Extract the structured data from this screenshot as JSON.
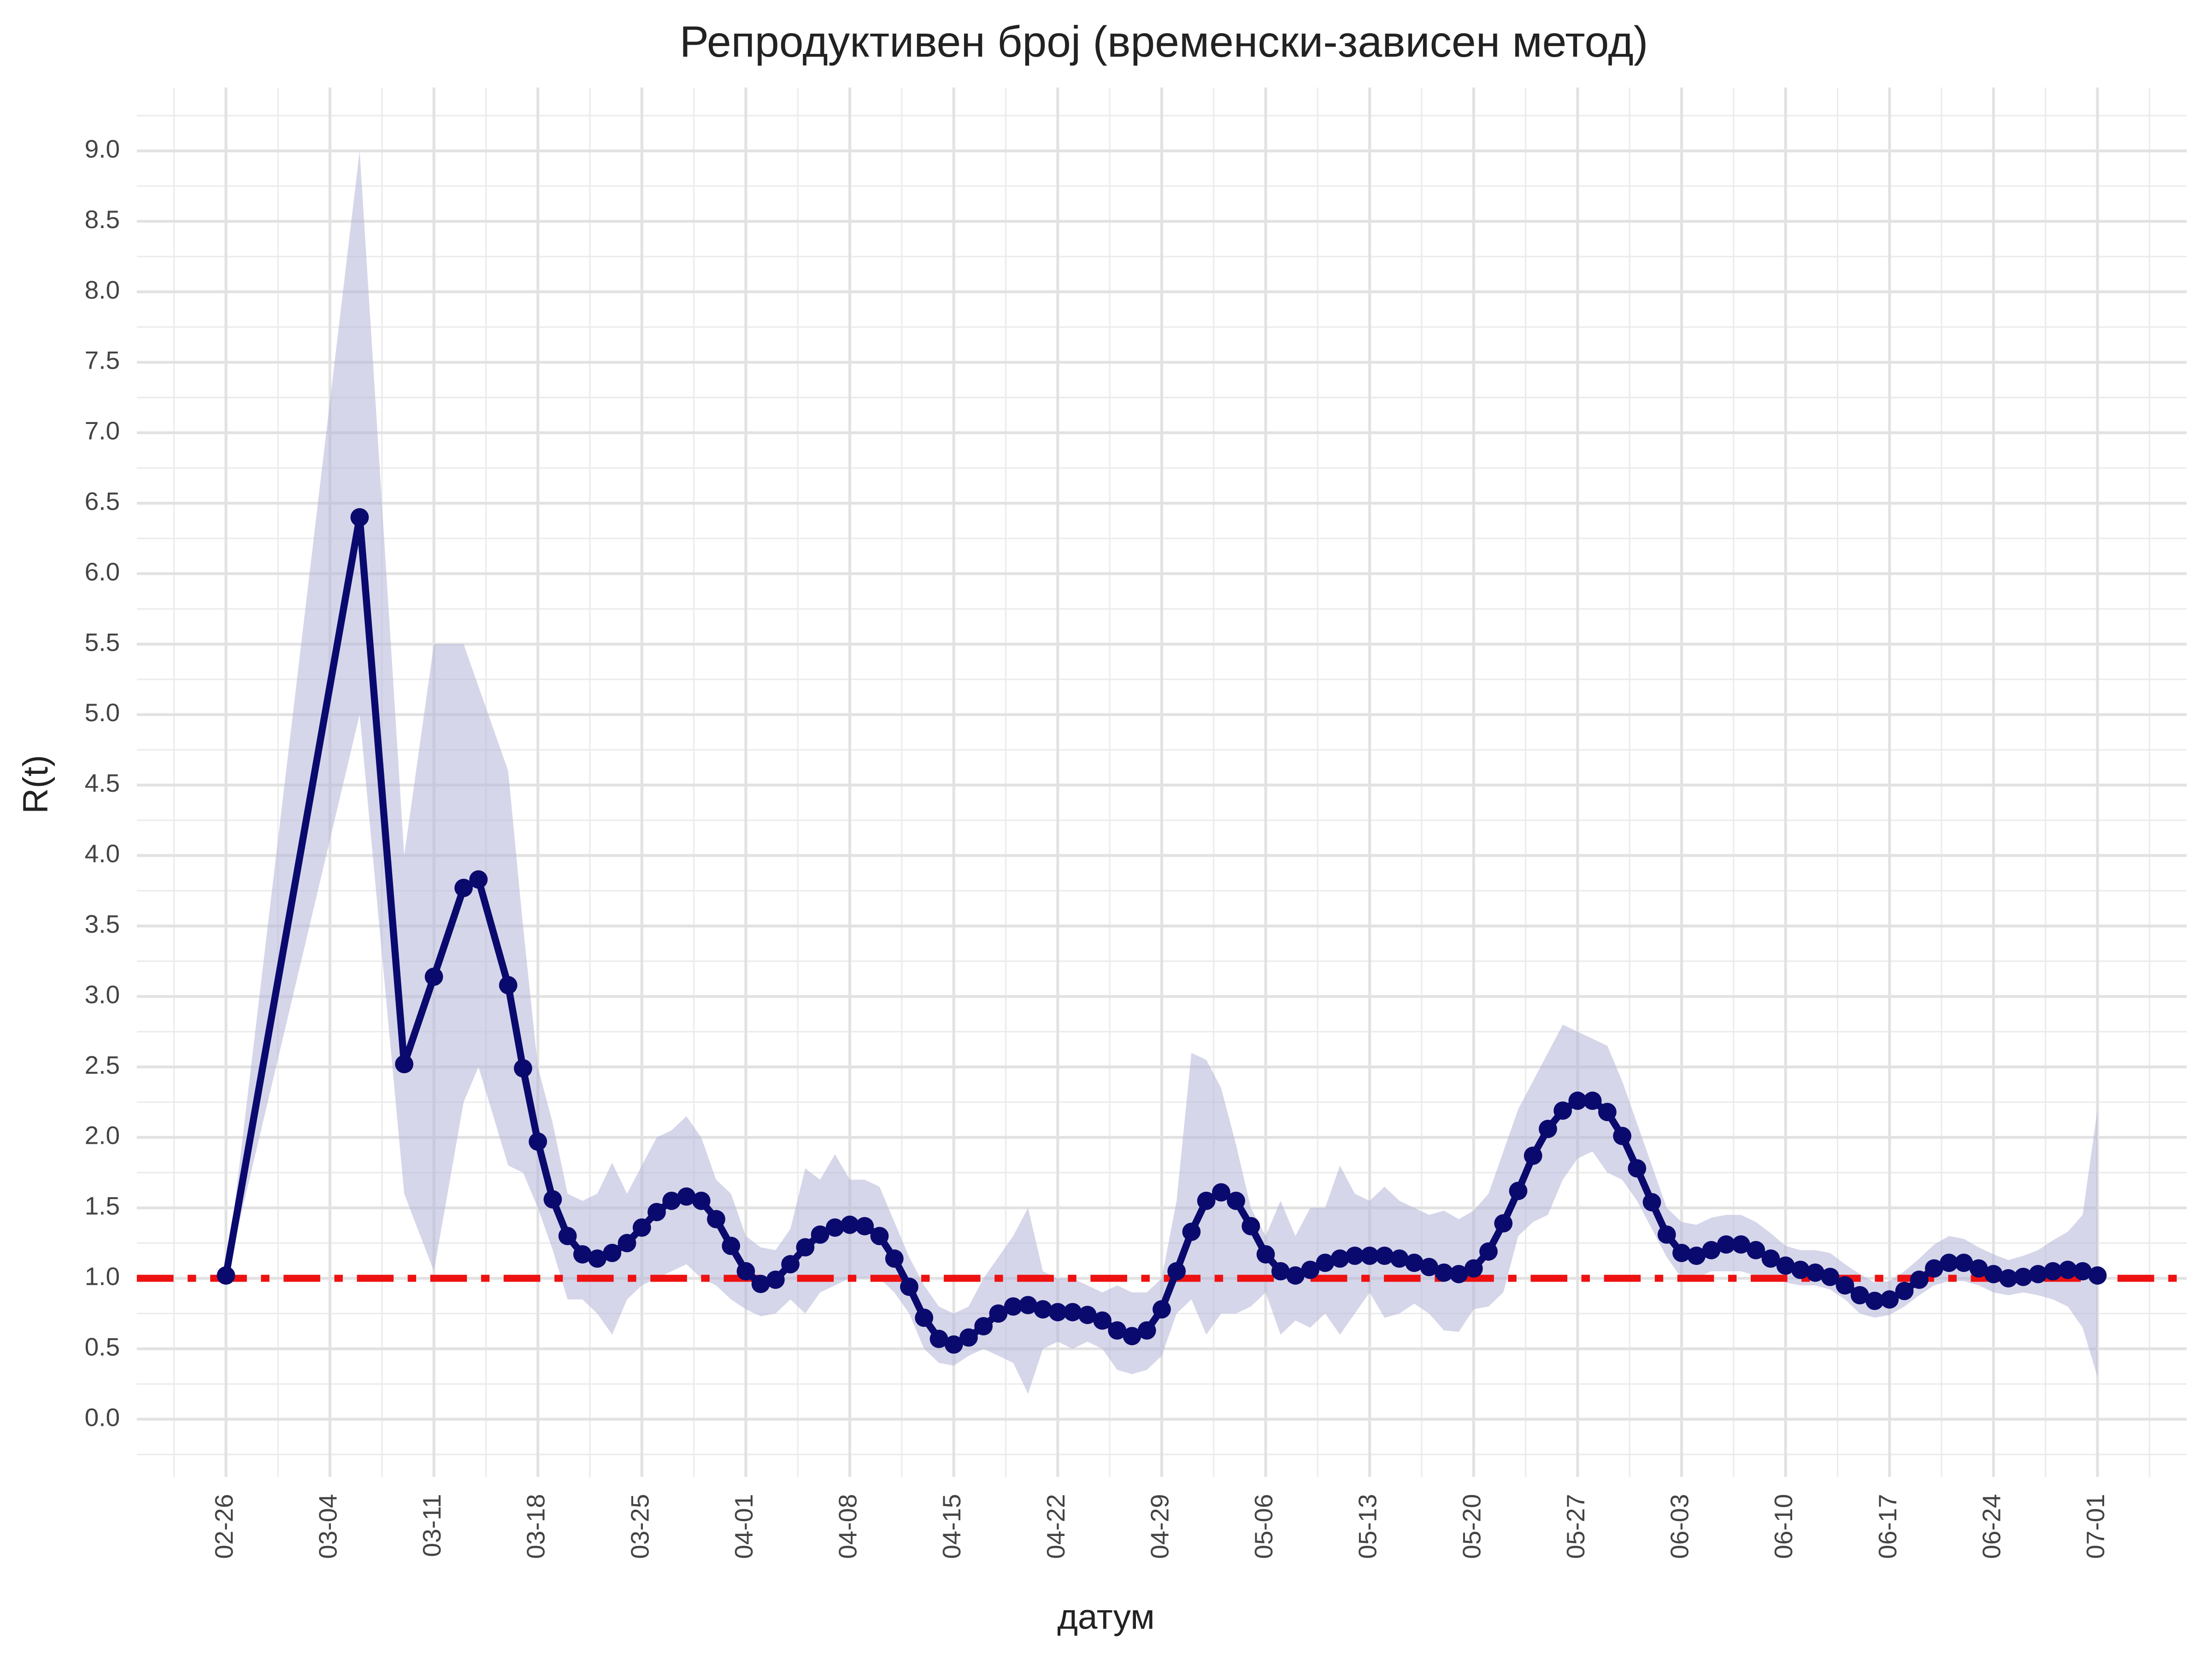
{
  "chart_data": {
    "type": "line",
    "title": "Репродуктивен број (временски-зависен метод)",
    "x_label": "датум",
    "y_label": "R(t)",
    "x": [
      "02-26",
      "03-06",
      "03-09",
      "03-11",
      "03-13",
      "03-14",
      "03-16",
      "03-17",
      "03-18",
      "03-19",
      "03-20",
      "03-21",
      "03-22",
      "03-23",
      "03-24",
      "03-25",
      "03-26",
      "03-27",
      "03-28",
      "03-29",
      "03-30",
      "03-31",
      "04-01",
      "04-02",
      "04-03",
      "04-04",
      "04-05",
      "04-06",
      "04-07",
      "04-08",
      "04-09",
      "04-10",
      "04-11",
      "04-12",
      "04-13",
      "04-14",
      "04-15",
      "04-16",
      "04-17",
      "04-18",
      "04-19",
      "04-20",
      "04-21",
      "04-22",
      "04-23",
      "04-24",
      "04-25",
      "04-26",
      "04-27",
      "04-28",
      "04-29",
      "04-30",
      "05-01",
      "05-02",
      "05-03",
      "05-04",
      "05-05",
      "05-06",
      "05-07",
      "05-08",
      "05-09",
      "05-10",
      "05-11",
      "05-12",
      "05-13",
      "05-14",
      "05-15",
      "05-16",
      "05-17",
      "05-18",
      "05-19",
      "05-20",
      "05-21",
      "05-22",
      "05-23",
      "05-24",
      "05-25",
      "05-26",
      "05-27",
      "05-28",
      "05-29",
      "05-30",
      "05-31",
      "06-01",
      "06-02",
      "06-03",
      "06-04",
      "06-05",
      "06-06",
      "06-07",
      "06-08",
      "06-09",
      "06-10",
      "06-11",
      "06-12",
      "06-13",
      "06-14",
      "06-15",
      "06-16",
      "06-17",
      "06-18",
      "06-19",
      "06-20",
      "06-21",
      "06-22",
      "06-23",
      "06-24",
      "06-25",
      "06-26",
      "06-27",
      "06-28",
      "06-29",
      "06-30",
      "07-01"
    ],
    "values": [
      1.02,
      6.4,
      2.52,
      3.14,
      3.77,
      3.83,
      3.08,
      2.49,
      1.97,
      1.56,
      1.3,
      1.17,
      1.14,
      1.18,
      1.25,
      1.36,
      1.47,
      1.55,
      1.58,
      1.55,
      1.42,
      1.23,
      1.05,
      0.96,
      0.99,
      1.1,
      1.22,
      1.31,
      1.36,
      1.38,
      1.37,
      1.3,
      1.14,
      0.94,
      0.72,
      0.57,
      0.53,
      0.58,
      0.66,
      0.75,
      0.8,
      0.81,
      0.78,
      0.76,
      0.76,
      0.74,
      0.7,
      0.63,
      0.59,
      0.63,
      0.78,
      1.05,
      1.33,
      1.55,
      1.61,
      1.55,
      1.37,
      1.17,
      1.05,
      1.02,
      1.06,
      1.11,
      1.14,
      1.16,
      1.16,
      1.16,
      1.14,
      1.11,
      1.08,
      1.04,
      1.03,
      1.07,
      1.19,
      1.39,
      1.62,
      1.87,
      2.06,
      2.19,
      2.26,
      2.26,
      2.18,
      2.01,
      1.78,
      1.54,
      1.31,
      1.18,
      1.16,
      1.2,
      1.24,
      1.24,
      1.2,
      1.14,
      1.09,
      1.06,
      1.04,
      1.01,
      0.95,
      0.88,
      0.84,
      0.85,
      0.91,
      0.99,
      1.07,
      1.11,
      1.11,
      1.07,
      1.03,
      1.0,
      1.01,
      1.03,
      1.05,
      1.06,
      1.05,
      1.02
    ],
    "lower": [
      1.0,
      5.0,
      1.6,
      1.05,
      2.25,
      2.5,
      1.8,
      1.75,
      1.5,
      1.2,
      0.85,
      0.85,
      0.75,
      0.6,
      0.85,
      0.95,
      1.0,
      1.05,
      1.1,
      1.0,
      0.95,
      0.85,
      0.78,
      0.73,
      0.75,
      0.85,
      0.75,
      0.9,
      0.95,
      1.0,
      1.0,
      1.0,
      0.9,
      0.75,
      0.5,
      0.4,
      0.38,
      0.45,
      0.5,
      0.45,
      0.4,
      0.18,
      0.5,
      0.55,
      0.5,
      0.55,
      0.5,
      0.35,
      0.32,
      0.35,
      0.45,
      0.75,
      0.85,
      0.6,
      0.75,
      0.75,
      0.8,
      0.9,
      0.6,
      0.7,
      0.65,
      0.75,
      0.6,
      0.75,
      0.9,
      0.72,
      0.75,
      0.82,
      0.75,
      0.63,
      0.62,
      0.78,
      0.8,
      0.9,
      1.3,
      1.4,
      1.45,
      1.7,
      1.85,
      1.9,
      1.75,
      1.7,
      1.55,
      1.35,
      1.15,
      1.0,
      1.0,
      1.05,
      1.05,
      1.05,
      1.02,
      1.0,
      0.97,
      0.95,
      0.95,
      0.92,
      0.85,
      0.75,
      0.72,
      0.74,
      0.8,
      0.88,
      0.95,
      0.98,
      0.98,
      0.95,
      0.9,
      0.88,
      0.9,
      0.88,
      0.85,
      0.8,
      0.65,
      0.3
    ],
    "upper": [
      1.0,
      9.0,
      4.0,
      5.5,
      5.5,
      5.2,
      4.6,
      3.5,
      2.5,
      2.1,
      1.6,
      1.55,
      1.6,
      1.82,
      1.6,
      1.8,
      2.0,
      2.05,
      2.15,
      2.0,
      1.7,
      1.6,
      1.3,
      1.22,
      1.2,
      1.35,
      1.78,
      1.7,
      1.88,
      1.7,
      1.7,
      1.65,
      1.4,
      1.15,
      0.95,
      0.8,
      0.75,
      0.8,
      1.0,
      1.15,
      1.3,
      1.5,
      1.05,
      1.0,
      1.0,
      0.95,
      0.9,
      0.95,
      0.9,
      0.9,
      1.0,
      1.55,
      2.6,
      2.55,
      2.35,
      1.95,
      1.5,
      1.3,
      1.55,
      1.3,
      1.5,
      1.5,
      1.8,
      1.6,
      1.55,
      1.65,
      1.55,
      1.5,
      1.45,
      1.48,
      1.42,
      1.48,
      1.6,
      1.9,
      2.2,
      2.4,
      2.6,
      2.8,
      2.75,
      2.7,
      2.65,
      2.4,
      2.1,
      1.8,
      1.5,
      1.4,
      1.38,
      1.43,
      1.45,
      1.45,
      1.4,
      1.32,
      1.23,
      1.2,
      1.2,
      1.18,
      1.1,
      1.03,
      0.97,
      0.98,
      1.05,
      1.14,
      1.24,
      1.3,
      1.28,
      1.22,
      1.17,
      1.13,
      1.16,
      1.2,
      1.27,
      1.33,
      1.45,
      2.2
    ],
    "color": "#0a0a6e",
    "band_color": "#b4b4d8",
    "reference_line": {
      "value": 1,
      "color": "#ee1111"
    },
    "xlim": [
      "02-20",
      "07-07"
    ],
    "xticks": [
      "02-26",
      "03-04",
      "03-11",
      "03-18",
      "03-25",
      "04-01",
      "04-08",
      "04-15",
      "04-22",
      "04-29",
      "05-06",
      "05-13",
      "05-20",
      "05-27",
      "06-03",
      "06-10",
      "06-17",
      "06-24",
      "07-01"
    ],
    "ylim": [
      -0.41,
      9.45
    ],
    "yticks": [
      {
        "value": 0,
        "label": "0.0"
      },
      {
        "value": 0.5,
        "label": "0.5"
      },
      {
        "value": 1,
        "label": "1.0"
      },
      {
        "value": 1.5,
        "label": "1.5"
      },
      {
        "value": 2,
        "label": "2.0"
      },
      {
        "value": 2.5,
        "label": "2.5"
      },
      {
        "value": 3,
        "label": "3.0"
      },
      {
        "value": 3.5,
        "label": "3.5"
      },
      {
        "value": 4,
        "label": "4.0"
      },
      {
        "value": 4.5,
        "label": "4.5"
      },
      {
        "value": 5,
        "label": "5.0"
      },
      {
        "value": 5.5,
        "label": "5.5"
      },
      {
        "value": 6,
        "label": "6.0"
      },
      {
        "value": 6.5,
        "label": "6.5"
      },
      {
        "value": 7,
        "label": "7.0"
      },
      {
        "value": 7.5,
        "label": "7.5"
      },
      {
        "value": 8,
        "label": "8.0"
      },
      {
        "value": 8.5,
        "label": "8.5"
      },
      {
        "value": 9,
        "label": "9.0"
      }
    ],
    "grid": true
  }
}
